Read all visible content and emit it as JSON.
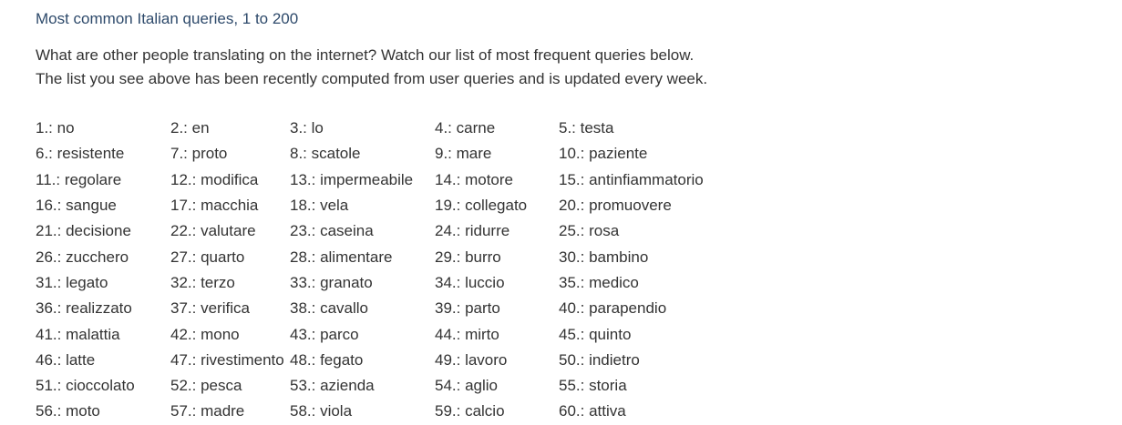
{
  "heading": "Most common Italian queries, 1 to 200",
  "intro": [
    "What are other people translating on the internet? Watch our list of most frequent queries below.",
    "The list you see above has been recently computed from user queries and is updated every week."
  ],
  "queries": [
    [
      "1.: no",
      "2.: en",
      "3.: lo",
      "4.: carne",
      "5.: testa"
    ],
    [
      "6.: resistente",
      "7.: proto",
      "8.: scatole",
      "9.: mare",
      "10.: paziente"
    ],
    [
      "11.: regolare",
      "12.: modifica",
      "13.: impermeabile",
      "14.: motore",
      "15.: antinfiammatorio"
    ],
    [
      "16.: sangue",
      "17.: macchia",
      "18.: vela",
      "19.: collegato",
      "20.: promuovere"
    ],
    [
      "21.: decisione",
      "22.: valutare",
      "23.: caseina",
      "24.: ridurre",
      "25.: rosa"
    ],
    [
      "26.: zucchero",
      "27.: quarto",
      "28.: alimentare",
      "29.: burro",
      "30.: bambino"
    ],
    [
      "31.: legato",
      "32.: terzo",
      "33.: granato",
      "34.: luccio",
      "35.: medico"
    ],
    [
      "36.: realizzato",
      "37.: verifica",
      "38.: cavallo",
      "39.: parto",
      "40.: parapendio"
    ],
    [
      "41.: malattia",
      "42.: mono",
      "43.: parco",
      "44.: mirto",
      "45.: quinto"
    ],
    [
      "46.: latte",
      "47.: rivestimento",
      "48.: fegato",
      "49.: lavoro",
      "50.: indietro"
    ],
    [
      "51.: cioccolato",
      "52.: pesca",
      "53.: azienda",
      "54.: aglio",
      "55.: storia"
    ],
    [
      "56.: moto",
      "57.: madre",
      "58.: viola",
      "59.: calcio",
      "60.: attiva"
    ]
  ]
}
